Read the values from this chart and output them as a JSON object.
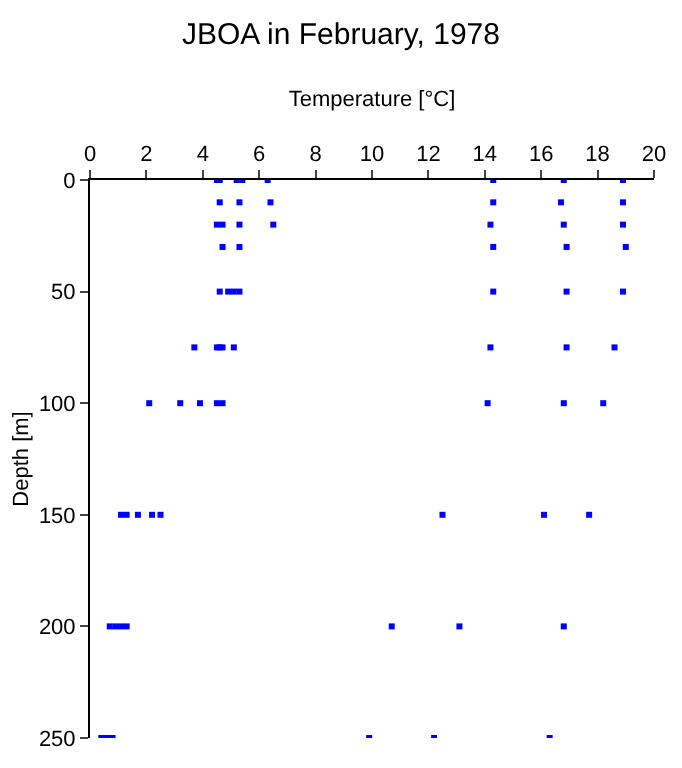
{
  "chart_data": {
    "type": "scatter",
    "title": "JBOA in February, 1978",
    "xlabel": "Temperature [°C]",
    "ylabel": "Depth [m]",
    "x": [
      4.5,
      4.6,
      5.2,
      5.4,
      6.3,
      14.3,
      16.8,
      18.9,
      4.6,
      5.3,
      6.4,
      14.3,
      16.7,
      18.9,
      4.5,
      4.7,
      5.3,
      6.5,
      14.2,
      16.8,
      18.9,
      4.7,
      5.3,
      14.3,
      16.9,
      19.0,
      4.6,
      4.9,
      5.1,
      5.3,
      14.3,
      16.9,
      18.9,
      3.7,
      4.5,
      4.6,
      4.7,
      5.1,
      14.2,
      16.9,
      18.6,
      2.1,
      3.2,
      3.9,
      4.5,
      4.7,
      14.1,
      16.8,
      18.2,
      1.1,
      1.3,
      1.7,
      2.2,
      2.5,
      12.5,
      16.1,
      17.7,
      0.7,
      0.9,
      1.1,
      1.3,
      10.7,
      13.1,
      16.8,
      0.4,
      0.6,
      0.8,
      9.9,
      12.2,
      16.3
    ],
    "series": [
      {
        "color": "#0000ff",
        "values": [
          0,
          0,
          0,
          0,
          0,
          0,
          0,
          0,
          10,
          10,
          10,
          10,
          10,
          10,
          20,
          20,
          20,
          20,
          20,
          20,
          20,
          30,
          30,
          30,
          30,
          30,
          50,
          50,
          50,
          50,
          50,
          50,
          50,
          75,
          75,
          75,
          75,
          75,
          75,
          75,
          75,
          100,
          100,
          100,
          100,
          100,
          100,
          100,
          100,
          150,
          150,
          150,
          150,
          150,
          150,
          150,
          150,
          200,
          200,
          200,
          200,
          200,
          200,
          200,
          250,
          250,
          250,
          250,
          250,
          250
        ]
      }
    ],
    "xlim": [
      0,
      20
    ],
    "xticks": [
      0,
      2,
      4,
      6,
      8,
      10,
      12,
      14,
      16,
      18,
      20
    ],
    "ylim": [
      250,
      0
    ],
    "yticks": [
      0,
      50,
      100,
      150,
      200,
      250
    ],
    "marker": "square"
  }
}
